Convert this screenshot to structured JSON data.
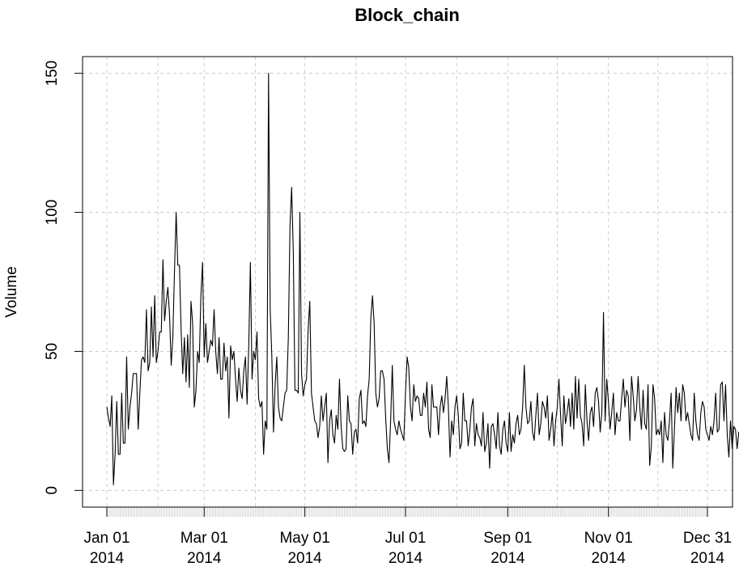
{
  "chart_data": {
    "type": "line",
    "title": "Block_chain",
    "xlabel": "",
    "ylabel": "Volume",
    "x_range": [
      "2014-01-01",
      "2014-12-31"
    ],
    "ylim": [
      -6,
      156
    ],
    "grid": true,
    "x_ticks": [
      {
        "date": "2014-01-01",
        "label": [
          "Jan 01",
          "2014"
        ]
      },
      {
        "date": "2014-03-01",
        "label": [
          "Mar 01",
          "2014"
        ]
      },
      {
        "date": "2014-05-01",
        "label": [
          "May 01",
          "2014"
        ]
      },
      {
        "date": "2014-07-01",
        "label": [
          "Jul 01",
          "2014"
        ]
      },
      {
        "date": "2014-09-01",
        "label": [
          "Sep 01",
          "2014"
        ]
      },
      {
        "date": "2014-11-01",
        "label": [
          "Nov 01",
          "2014"
        ]
      },
      {
        "date": "2014-12-31",
        "label": [
          "Dec 31",
          "2014"
        ]
      }
    ],
    "y_ticks": [
      0,
      50,
      100,
      150
    ],
    "y_tick_labels": [
      "0",
      "50",
      "100",
      "150"
    ],
    "series": [
      {
        "line_color": "#000000",
        "start_date": "2014-01-01",
        "step_days": 1,
        "values": [
          30,
          26,
          23,
          34,
          2,
          13,
          32,
          13,
          13,
          35,
          17,
          17,
          48,
          22,
          30,
          35,
          42,
          42,
          42,
          22,
          35,
          47,
          48,
          46,
          65,
          43,
          46,
          66,
          48,
          70,
          46,
          50,
          57,
          57,
          83,
          61,
          68,
          73,
          63,
          45,
          55,
          79,
          100,
          81,
          81,
          58,
          42,
          55,
          39,
          56,
          37,
          68,
          60,
          30,
          36,
          50,
          46,
          70,
          82,
          48,
          60,
          46,
          50,
          54,
          52,
          65,
          50,
          42,
          55,
          40,
          40,
          53,
          43,
          48,
          26,
          52,
          47,
          50,
          40,
          32,
          44,
          36,
          33,
          43,
          48,
          31,
          52,
          82,
          40,
          50,
          47,
          57,
          33,
          30,
          32,
          13,
          25,
          22,
          150,
          65,
          48,
          21,
          38,
          48,
          30,
          26,
          25,
          30,
          35,
          36,
          55,
          95,
          109,
          86,
          36,
          36,
          35,
          100,
          42,
          34,
          38,
          40,
          58,
          68,
          35,
          30,
          25,
          24,
          19,
          23,
          34,
          25,
          30,
          35,
          10,
          25,
          29,
          20,
          17,
          27,
          22,
          40,
          23,
          15,
          14,
          15,
          34,
          25,
          24,
          13,
          21,
          22,
          17,
          33,
          36,
          24,
          25,
          23,
          34,
          40,
          62,
          70,
          60,
          35,
          30,
          33,
          43,
          43,
          40,
          26,
          15,
          10,
          25,
          45,
          25,
          22,
          20,
          25,
          22,
          20,
          18,
          35,
          48,
          44,
          30,
          25,
          38,
          32,
          34,
          33,
          27,
          27,
          35,
          30,
          39,
          22,
          19,
          38,
          30,
          30,
          30,
          20,
          30,
          34,
          28,
          33,
          41,
          30,
          12,
          25,
          20,
          30,
          34,
          27,
          15,
          17,
          35,
          25,
          25,
          16,
          22,
          30,
          33,
          16,
          24,
          20,
          19,
          16,
          28,
          14,
          17,
          24,
          8,
          23,
          24,
          20,
          15,
          28,
          16,
          13,
          22,
          25,
          17,
          14,
          28,
          14,
          20,
          17,
          24,
          27,
          20,
          22,
          30,
          45,
          30,
          24,
          25,
          32,
          21,
          18,
          27,
          35,
          20,
          24,
          32,
          30,
          26,
          34,
          18,
          22,
          28,
          16,
          25,
          30,
          40,
          27,
          16,
          34,
          24,
          28,
          33,
          23,
          35,
          22,
          41,
          26,
          40,
          27,
          24,
          16,
          38,
          25,
          18,
          28,
          30,
          23,
          35,
          37,
          32,
          21,
          28,
          64,
          25,
          40,
          32,
          22,
          28,
          35,
          20,
          28,
          25,
          25,
          33,
          40,
          30,
          36,
          34,
          18,
          41,
          34,
          25,
          29,
          41,
          30,
          22,
          36,
          24,
          22,
          38,
          9,
          16,
          38,
          33,
          20,
          22,
          20,
          25,
          10,
          28,
          20,
          18,
          25,
          35,
          8,
          22,
          37,
          28,
          35,
          25,
          38,
          35,
          25,
          28,
          24,
          20,
          18,
          35,
          25,
          20,
          18,
          28,
          32,
          30,
          22,
          20,
          18,
          23,
          20,
          25,
          35,
          21,
          22,
          38,
          39,
          25,
          38,
          20,
          12,
          25,
          15,
          23,
          22,
          15,
          21,
          18,
          22,
          20,
          21,
          23
        ]
      }
    ]
  }
}
